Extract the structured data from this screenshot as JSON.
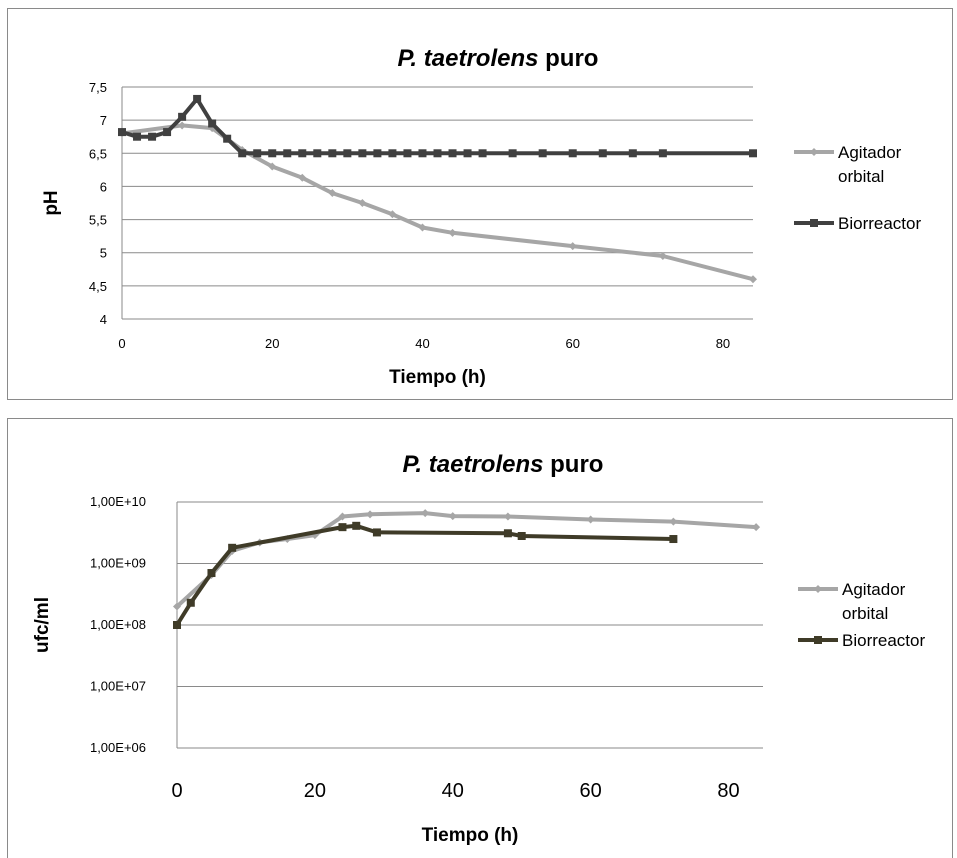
{
  "chart_data": [
    {
      "type": "line",
      "title_italic": "P. taetrolens",
      "title_rest": " puro",
      "xlabel": "Tiempo (h)",
      "ylabel": "pH",
      "xlim": [
        0,
        84
      ],
      "ylim": [
        4,
        7.5
      ],
      "xticks": [
        0,
        20,
        40,
        60,
        80
      ],
      "yticks": [
        4,
        4.5,
        5,
        5.5,
        6,
        6.5,
        7,
        7.5
      ],
      "ytick_labels": [
        "4",
        "4,5",
        "5",
        "5,5",
        "6",
        "6,5",
        "7",
        "7,5"
      ],
      "legend_position": "right",
      "series": [
        {
          "name": "Agitador orbital",
          "legend_lines": [
            "Agitador",
            "orbital"
          ],
          "color": "#a6a6a6",
          "marker": "diamond",
          "x": [
            0,
            8,
            12,
            16,
            20,
            24,
            28,
            32,
            36,
            40,
            44,
            60,
            72,
            84
          ],
          "y": [
            6.8,
            6.92,
            6.88,
            6.55,
            6.3,
            6.13,
            5.9,
            5.75,
            5.58,
            5.38,
            5.3,
            5.1,
            4.95,
            4.6
          ]
        },
        {
          "name": "Biorreactor",
          "legend_lines": [
            "Biorreactor"
          ],
          "color": "#404040",
          "marker": "square",
          "x": [
            0,
            2,
            4,
            6,
            8,
            10,
            12,
            14,
            16,
            18,
            20,
            22,
            24,
            26,
            28,
            30,
            32,
            34,
            36,
            38,
            40,
            42,
            44,
            46,
            48,
            52,
            56,
            60,
            64,
            68,
            72,
            84
          ],
          "y": [
            6.82,
            6.75,
            6.75,
            6.82,
            7.05,
            7.32,
            6.95,
            6.72,
            6.5,
            6.5,
            6.5,
            6.5,
            6.5,
            6.5,
            6.5,
            6.5,
            6.5,
            6.5,
            6.5,
            6.5,
            6.5,
            6.5,
            6.5,
            6.5,
            6.5,
            6.5,
            6.5,
            6.5,
            6.5,
            6.5,
            6.5,
            6.5
          ]
        }
      ]
    },
    {
      "type": "line",
      "title_italic": "P. taetrolens",
      "title_rest": " puro",
      "xlabel": "Tiempo (h)",
      "ylabel": "ufc/ml",
      "yscale": "log",
      "xlim": [
        0,
        85
      ],
      "ylim": [
        1000000,
        10000000000
      ],
      "xticks": [
        0,
        20,
        40,
        60,
        80
      ],
      "yticks": [
        1000000,
        10000000,
        100000000,
        1000000000,
        10000000000
      ],
      "ytick_labels": [
        "1,00E+06",
        "1,00E+07",
        "1,00E+08",
        "1,00E+09",
        "1,00E+10"
      ],
      "legend_position": "right",
      "series": [
        {
          "name": "Agitador orbital",
          "legend_lines": [
            "Agitador",
            "orbital"
          ],
          "color": "#a6a6a6",
          "marker": "diamond",
          "x": [
            0,
            5,
            8,
            12,
            16,
            20,
            24,
            28,
            36,
            40,
            48,
            60,
            72,
            84
          ],
          "y": [
            200000000,
            650000000,
            1600000000,
            2200000000,
            2500000000,
            2900000000,
            5800000000,
            6300000000,
            6600000000,
            5900000000,
            5800000000,
            5200000000,
            4800000000,
            3900000000
          ]
        },
        {
          "name": "Biorreactor",
          "legend_lines": [
            "Biorreactor"
          ],
          "color": "#3f3b28",
          "marker": "square",
          "x": [
            0,
            2,
            5,
            8,
            24,
            26,
            29,
            48,
            50,
            72
          ],
          "y": [
            100000000,
            230000000,
            700000000,
            1800000000,
            3900000000,
            4100000000,
            3200000000,
            3100000000,
            2800000000,
            2500000000
          ]
        }
      ]
    }
  ]
}
